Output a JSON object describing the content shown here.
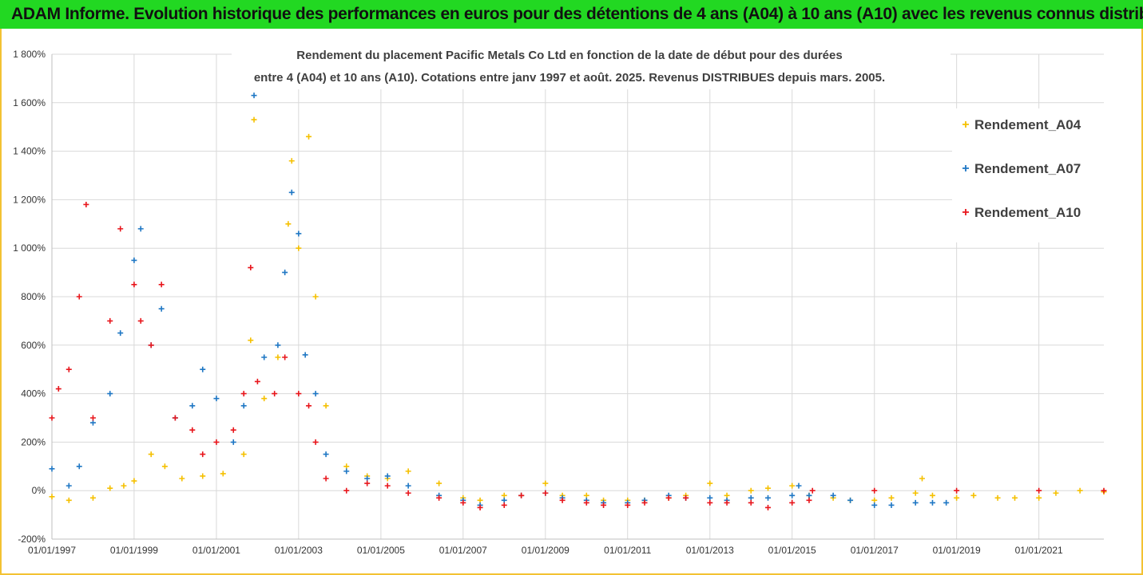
{
  "header": {
    "title": "ADAM Informe. Evolution historique des performances en euros pour des détentions de 4 ans (A04) à 10 ans (A10) avec les revenus connus distribués"
  },
  "colors": {
    "A04": "#f5c000",
    "A07": "#1f77c4",
    "A10": "#e8161c",
    "banner": "#22d822",
    "frame": "#f3c233"
  },
  "chart_data": {
    "type": "scatter",
    "title_line1": "Rendement du placement Pacific Metals Co Ltd en fonction de la date de début pour des durées",
    "title_line2": "entre 4 (A04) et 10 ans (A10). Cotations entre janv 1997 et août. 2025. Revenus DISTRIBUES depuis mars. 2005.",
    "xlabel": "",
    "ylabel": "",
    "x_range": [
      "1997-01-01",
      "2022-08-01"
    ],
    "ylim": [
      -200,
      1800
    ],
    "y_unit": "%",
    "y_ticks": [
      "-200%",
      "0%",
      "200%",
      "400%",
      "600%",
      "800%",
      "1 000%",
      "1 200%",
      "1 400%",
      "1 600%",
      "1 800%"
    ],
    "x_ticks": [
      "01/01/1997",
      "01/01/1999",
      "01/01/2001",
      "01/01/2003",
      "01/01/2005",
      "01/01/2007",
      "01/01/2009",
      "01/01/2011",
      "01/01/2013",
      "01/01/2015",
      "01/01/2017",
      "01/01/2019",
      "01/01/2021"
    ],
    "grid": true,
    "legend_position": "right",
    "series": [
      {
        "name": "Rendement_A04",
        "color": "#f5c000",
        "points": [
          [
            "1997-01-01",
            -25
          ],
          [
            "1997-06-01",
            -40
          ],
          [
            "1998-01-01",
            -30
          ],
          [
            "1998-06-01",
            10
          ],
          [
            "1998-10-01",
            20
          ],
          [
            "1999-01-01",
            40
          ],
          [
            "1999-06-01",
            150
          ],
          [
            "1999-10-01",
            100
          ],
          [
            "2000-03-01",
            50
          ],
          [
            "2000-09-01",
            60
          ],
          [
            "2001-03-01",
            70
          ],
          [
            "2001-09-01",
            150
          ],
          [
            "2001-11-01",
            620
          ],
          [
            "2001-12-01",
            1530
          ],
          [
            "2002-03-01",
            380
          ],
          [
            "2002-07-01",
            550
          ],
          [
            "2002-10-01",
            1100
          ],
          [
            "2002-11-01",
            1360
          ],
          [
            "2003-01-01",
            1000
          ],
          [
            "2003-04-01",
            1460
          ],
          [
            "2003-06-01",
            800
          ],
          [
            "2003-09-01",
            350
          ],
          [
            "2004-03-01",
            100
          ],
          [
            "2004-09-01",
            60
          ],
          [
            "2005-03-01",
            50
          ],
          [
            "2005-09-01",
            80
          ],
          [
            "2006-06-01",
            30
          ],
          [
            "2007-01-01",
            -30
          ],
          [
            "2007-06-01",
            -40
          ],
          [
            "2008-01-01",
            -20
          ],
          [
            "2008-06-01",
            -20
          ],
          [
            "2009-01-01",
            30
          ],
          [
            "2009-06-01",
            -20
          ],
          [
            "2010-01-01",
            -20
          ],
          [
            "2010-06-01",
            -40
          ],
          [
            "2011-01-01",
            -40
          ],
          [
            "2011-06-01",
            -40
          ],
          [
            "2012-01-01",
            -30
          ],
          [
            "2012-06-01",
            -20
          ],
          [
            "2013-01-01",
            30
          ],
          [
            "2013-06-01",
            -20
          ],
          [
            "2014-01-01",
            0
          ],
          [
            "2014-06-01",
            10
          ],
          [
            "2015-01-01",
            20
          ],
          [
            "2015-06-01",
            -20
          ],
          [
            "2016-01-01",
            -30
          ],
          [
            "2016-06-01",
            -40
          ],
          [
            "2017-01-01",
            -40
          ],
          [
            "2017-06-01",
            -30
          ],
          [
            "2018-01-01",
            -10
          ],
          [
            "2018-03-01",
            50
          ],
          [
            "2018-06-01",
            -20
          ],
          [
            "2019-01-01",
            -30
          ],
          [
            "2019-06-01",
            -20
          ],
          [
            "2020-01-01",
            -30
          ],
          [
            "2020-06-01",
            -30
          ],
          [
            "2021-01-01",
            -30
          ],
          [
            "2021-06-01",
            -10
          ],
          [
            "2022-01-01",
            0
          ],
          [
            "2022-08-01",
            -5
          ]
        ]
      },
      {
        "name": "Rendement_A07",
        "color": "#1f77c4",
        "points": [
          [
            "1997-01-01",
            90
          ],
          [
            "1997-06-01",
            20
          ],
          [
            "1997-09-01",
            100
          ],
          [
            "1998-01-01",
            280
          ],
          [
            "1998-06-01",
            400
          ],
          [
            "1998-09-01",
            650
          ],
          [
            "1999-01-01",
            950
          ],
          [
            "1999-03-01",
            1080
          ],
          [
            "1999-06-01",
            600
          ],
          [
            "1999-09-01",
            750
          ],
          [
            "2000-01-01",
            300
          ],
          [
            "2000-06-01",
            350
          ],
          [
            "2000-09-01",
            500
          ],
          [
            "2001-01-01",
            380
          ],
          [
            "2001-06-01",
            200
          ],
          [
            "2001-09-01",
            350
          ],
          [
            "2001-12-01",
            1630
          ],
          [
            "2002-03-01",
            550
          ],
          [
            "2002-07-01",
            600
          ],
          [
            "2002-09-01",
            900
          ],
          [
            "2002-11-01",
            1230
          ],
          [
            "2003-01-01",
            1060
          ],
          [
            "2003-03-01",
            560
          ],
          [
            "2003-06-01",
            400
          ],
          [
            "2003-09-01",
            150
          ],
          [
            "2004-03-01",
            80
          ],
          [
            "2004-09-01",
            50
          ],
          [
            "2005-03-01",
            60
          ],
          [
            "2005-09-01",
            20
          ],
          [
            "2006-06-01",
            -20
          ],
          [
            "2007-01-01",
            -40
          ],
          [
            "2007-06-01",
            -60
          ],
          [
            "2008-01-01",
            -40
          ],
          [
            "2008-06-01",
            -20
          ],
          [
            "2009-01-01",
            -10
          ],
          [
            "2009-06-01",
            -30
          ],
          [
            "2010-01-01",
            -40
          ],
          [
            "2010-06-01",
            -50
          ],
          [
            "2011-01-01",
            -50
          ],
          [
            "2011-06-01",
            -40
          ],
          [
            "2012-01-01",
            -20
          ],
          [
            "2012-06-01",
            -30
          ],
          [
            "2013-01-01",
            -30
          ],
          [
            "2013-06-01",
            -40
          ],
          [
            "2014-01-01",
            -30
          ],
          [
            "2014-06-01",
            -30
          ],
          [
            "2015-01-01",
            -20
          ],
          [
            "2015-03-01",
            20
          ],
          [
            "2015-06-01",
            -20
          ],
          [
            "2016-01-01",
            -20
          ],
          [
            "2016-06-01",
            -40
          ],
          [
            "2017-01-01",
            -60
          ],
          [
            "2017-06-01",
            -60
          ],
          [
            "2018-01-01",
            -50
          ],
          [
            "2018-06-01",
            -50
          ],
          [
            "2018-10-01",
            -50
          ]
        ]
      },
      {
        "name": "Rendement_A10",
        "color": "#e8161c",
        "points": [
          [
            "1997-01-01",
            300
          ],
          [
            "1997-03-01",
            420
          ],
          [
            "1997-06-01",
            500
          ],
          [
            "1997-09-01",
            800
          ],
          [
            "1997-11-01",
            1180
          ],
          [
            "1998-01-01",
            300
          ],
          [
            "1998-06-01",
            700
          ],
          [
            "1998-09-01",
            1080
          ],
          [
            "1999-01-01",
            850
          ],
          [
            "1999-03-01",
            700
          ],
          [
            "1999-06-01",
            600
          ],
          [
            "1999-09-01",
            850
          ],
          [
            "2000-01-01",
            300
          ],
          [
            "2000-06-01",
            250
          ],
          [
            "2000-09-01",
            150
          ],
          [
            "2001-01-01",
            200
          ],
          [
            "2001-06-01",
            250
          ],
          [
            "2001-09-01",
            400
          ],
          [
            "2001-11-01",
            920
          ],
          [
            "2002-01-01",
            450
          ],
          [
            "2002-06-01",
            400
          ],
          [
            "2002-09-01",
            550
          ],
          [
            "2003-01-01",
            400
          ],
          [
            "2003-04-01",
            350
          ],
          [
            "2003-06-01",
            200
          ],
          [
            "2003-09-01",
            50
          ],
          [
            "2004-03-01",
            0
          ],
          [
            "2004-09-01",
            30
          ],
          [
            "2005-03-01",
            20
          ],
          [
            "2005-09-01",
            -10
          ],
          [
            "2006-06-01",
            -30
          ],
          [
            "2007-01-01",
            -50
          ],
          [
            "2007-06-01",
            -70
          ],
          [
            "2008-01-01",
            -60
          ],
          [
            "2008-06-01",
            -20
          ],
          [
            "2009-01-01",
            -10
          ],
          [
            "2009-06-01",
            -40
          ],
          [
            "2010-01-01",
            -50
          ],
          [
            "2010-06-01",
            -60
          ],
          [
            "2011-01-01",
            -60
          ],
          [
            "2011-06-01",
            -50
          ],
          [
            "2012-01-01",
            -30
          ],
          [
            "2012-06-01",
            -30
          ],
          [
            "2013-01-01",
            -50
          ],
          [
            "2013-06-01",
            -50
          ],
          [
            "2014-01-01",
            -50
          ],
          [
            "2014-06-01",
            -70
          ],
          [
            "2015-01-01",
            -50
          ],
          [
            "2015-06-01",
            -40
          ],
          [
            "2015-07-01",
            0
          ],
          [
            "2017-01-01",
            0
          ],
          [
            "2019-01-01",
            0
          ],
          [
            "2021-01-01",
            0
          ],
          [
            "2022-08-01",
            0
          ]
        ]
      }
    ]
  }
}
